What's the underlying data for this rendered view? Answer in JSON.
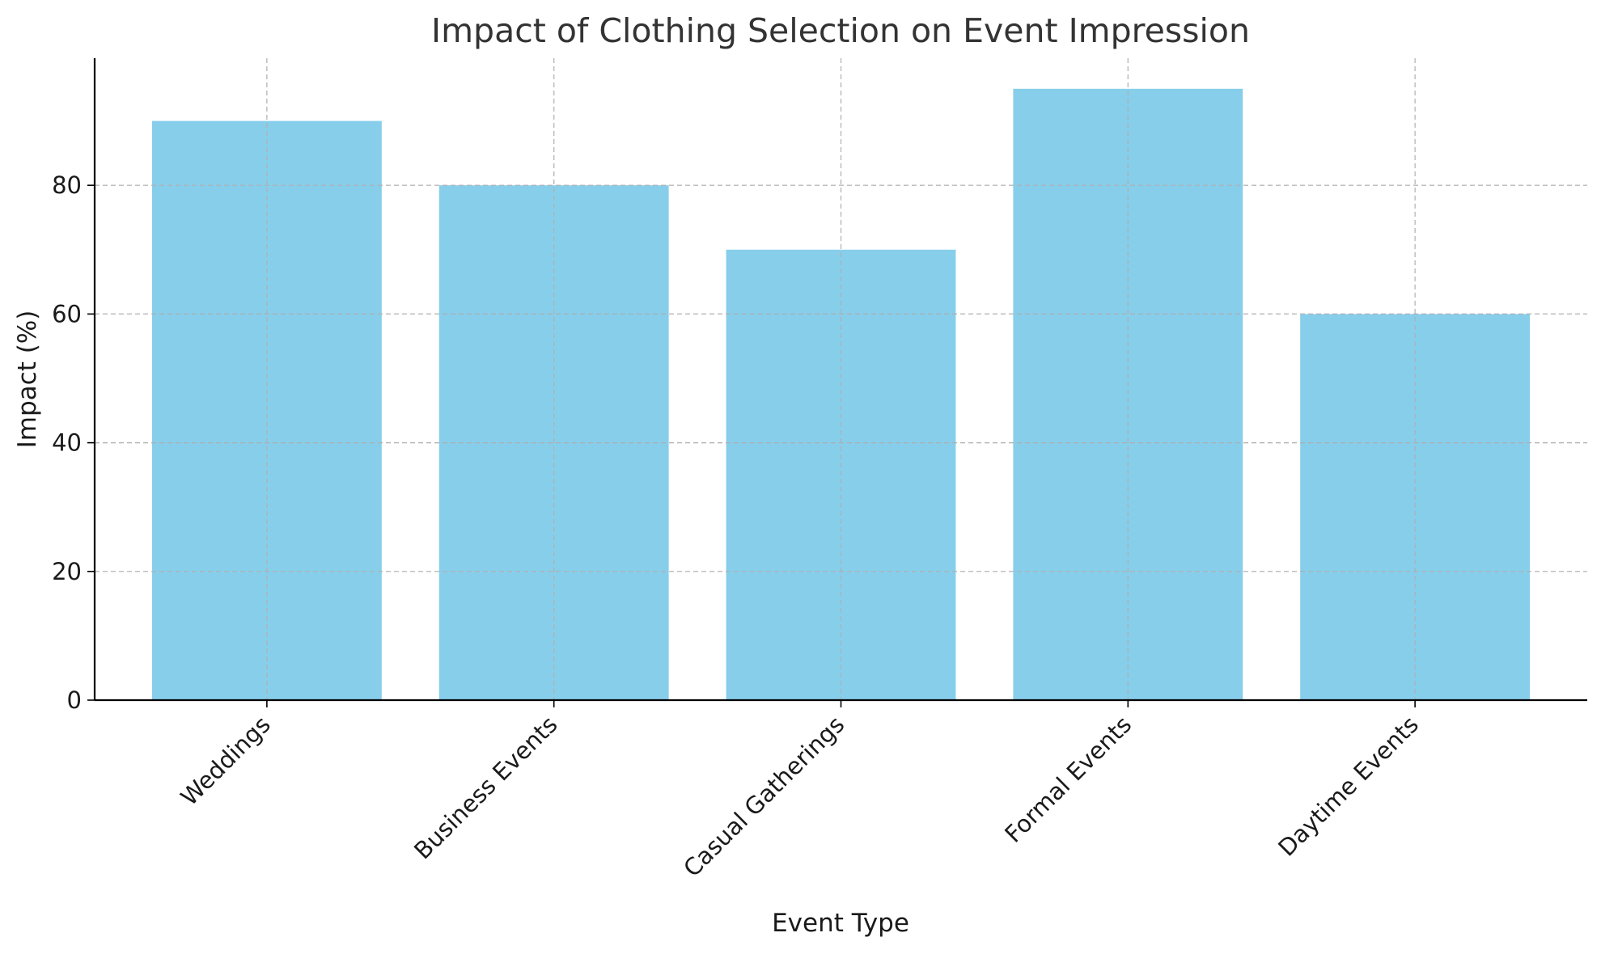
{
  "chart_data": {
    "type": "bar",
    "title": "Impact of Clothing Selection on Event Impression",
    "xlabel": "Event Type",
    "ylabel": "Impact (%)",
    "categories": [
      "Weddings",
      "Business Events",
      "Casual Gatherings",
      "Formal Events",
      "Daytime Events"
    ],
    "values": [
      90,
      80,
      70,
      95,
      60
    ],
    "ylim": [
      0,
      99.75
    ],
    "yticks": [
      0,
      20,
      40,
      60,
      80
    ],
    "bar_color": "#87ceeb",
    "grid": true,
    "legend": "none"
  }
}
